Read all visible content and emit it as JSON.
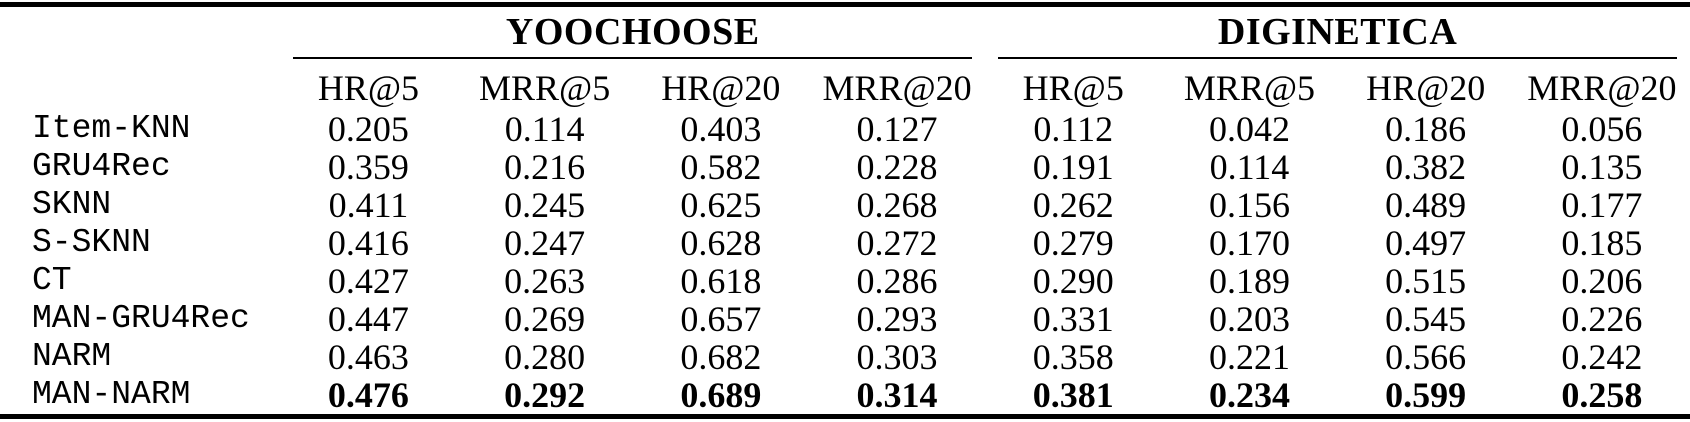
{
  "table": {
    "groups": [
      {
        "label": "YOOCHOOSE",
        "metrics": [
          "HR@5",
          "MRR@5",
          "HR@20",
          "MRR@20"
        ]
      },
      {
        "label": "DIGINETICA",
        "metrics": [
          "HR@5",
          "MRR@5",
          "HR@20",
          "MRR@20"
        ]
      }
    ],
    "rows": [
      {
        "model": "Item-KNN",
        "bold": false,
        "values": [
          "0.205",
          "0.114",
          "0.403",
          "0.127",
          "0.112",
          "0.042",
          "0.186",
          "0.056"
        ]
      },
      {
        "model": "GRU4Rec",
        "bold": false,
        "values": [
          "0.359",
          "0.216",
          "0.582",
          "0.228",
          "0.191",
          "0.114",
          "0.382",
          "0.135"
        ]
      },
      {
        "model": "SKNN",
        "bold": false,
        "values": [
          "0.411",
          "0.245",
          "0.625",
          "0.268",
          "0.262",
          "0.156",
          "0.489",
          "0.177"
        ]
      },
      {
        "model": "S-SKNN",
        "bold": false,
        "values": [
          "0.416",
          "0.247",
          "0.628",
          "0.272",
          "0.279",
          "0.170",
          "0.497",
          "0.185"
        ]
      },
      {
        "model": "CT",
        "bold": false,
        "values": [
          "0.427",
          "0.263",
          "0.618",
          "0.286",
          "0.290",
          "0.189",
          "0.515",
          "0.206"
        ]
      },
      {
        "model": "MAN-GRU4Rec",
        "bold": false,
        "values": [
          "0.447",
          "0.269",
          "0.657",
          "0.293",
          "0.331",
          "0.203",
          "0.545",
          "0.226"
        ]
      },
      {
        "model": "NARM",
        "bold": false,
        "values": [
          "0.463",
          "0.280",
          "0.682",
          "0.303",
          "0.358",
          "0.221",
          "0.566",
          "0.242"
        ]
      },
      {
        "model": "MAN-NARM",
        "bold": true,
        "values": [
          "0.476",
          "0.292",
          "0.689",
          "0.314",
          "0.381",
          "0.234",
          "0.599",
          "0.258"
        ]
      }
    ]
  },
  "colors": {
    "text": "#000000",
    "background": "#ffffff",
    "rule": "#000000"
  }
}
